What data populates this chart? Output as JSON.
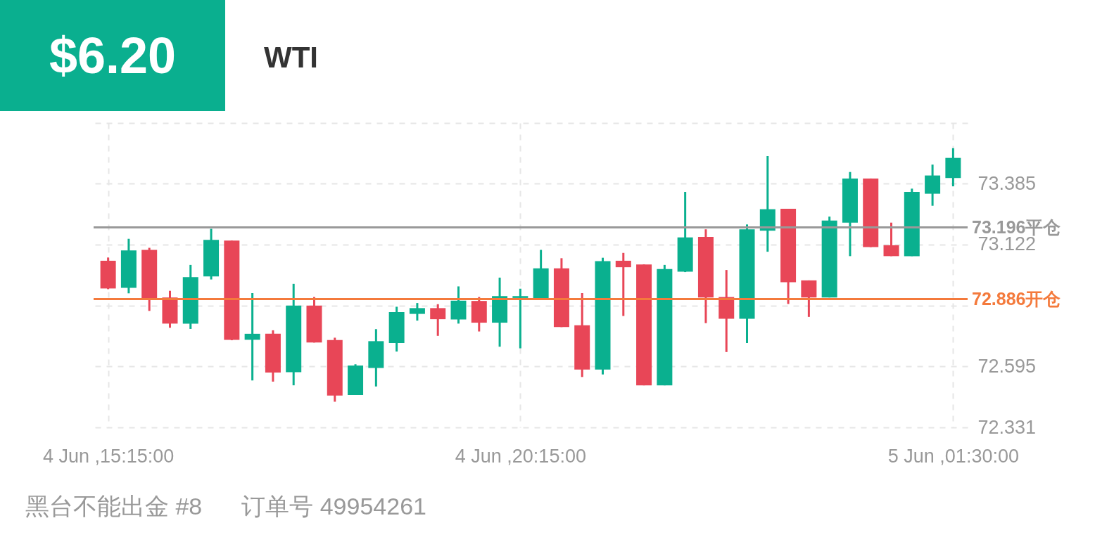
{
  "chart_data": {
    "type": "candlestick",
    "title": "WTI",
    "annotations": [
      "$6.20",
      "黑台不能出金 #8",
      "订单号 49954261"
    ],
    "x": [
      "--06-04T15:15",
      "--06-04T15:30",
      "--06-04T15:45",
      "--06-04T16:00",
      "--06-04T16:15",
      "--06-04T16:30",
      "--06-04T16:45",
      "--06-04T17:00",
      "--06-04T17:15",
      "--06-04T17:30",
      "--06-04T17:45",
      "--06-04T18:00",
      "--06-04T18:15",
      "--06-04T18:30",
      "--06-04T18:45",
      "--06-04T19:00",
      "--06-04T19:15",
      "--06-04T19:30",
      "--06-04T19:45",
      "--06-04T20:00",
      "--06-04T20:15",
      "--06-04T20:30",
      "--06-04T20:45",
      "--06-04T21:00",
      "--06-04T21:15",
      "--06-04T21:30",
      "--06-04T21:45",
      "--06-04T22:00",
      "--06-04T22:15",
      "--06-04T22:30",
      "--06-04T22:45",
      "--06-04T23:00",
      "--06-04T23:15",
      "--06-04T23:30",
      "--06-04T23:45",
      "--06-05T00:00",
      "--06-05T00:15",
      "--06-05T00:30",
      "--06-05T00:45",
      "--06-05T01:00",
      "--06-05T01:15",
      "--06-05T01:30"
    ],
    "ohlc": [
      [
        73.052,
        73.066,
        72.929,
        72.932
      ],
      [
        72.935,
        73.147,
        72.911,
        73.097
      ],
      [
        73.099,
        73.108,
        72.835,
        72.89
      ],
      [
        72.893,
        72.922,
        72.762,
        72.78
      ],
      [
        72.78,
        73.034,
        72.757,
        72.981
      ],
      [
        72.984,
        73.19,
        72.971,
        73.142
      ],
      [
        73.139,
        73.139,
        72.708,
        72.71
      ],
      [
        72.71,
        72.912,
        72.534,
        72.736
      ],
      [
        72.736,
        72.751,
        72.529,
        72.568
      ],
      [
        72.57,
        72.952,
        72.513,
        72.858
      ],
      [
        72.858,
        72.895,
        72.698,
        72.698
      ],
      [
        72.709,
        72.719,
        72.442,
        72.469
      ],
      [
        72.471,
        72.604,
        72.471,
        72.599
      ],
      [
        72.588,
        72.756,
        72.508,
        72.704
      ],
      [
        72.696,
        72.853,
        72.659,
        72.83
      ],
      [
        72.822,
        72.869,
        72.793,
        72.847
      ],
      [
        72.847,
        72.864,
        72.727,
        72.799
      ],
      [
        72.798,
        72.941,
        72.78,
        72.879
      ],
      [
        72.878,
        72.895,
        72.746,
        72.784
      ],
      [
        72.784,
        72.979,
        72.68,
        72.899
      ],
      [
        72.891,
        72.931,
        72.673,
        72.899
      ],
      [
        72.89,
        73.099,
        72.89,
        73.019
      ],
      [
        73.019,
        73.063,
        72.765,
        72.765
      ],
      [
        72.773,
        72.912,
        72.549,
        72.581
      ],
      [
        72.581,
        73.065,
        72.56,
        73.05
      ],
      [
        73.052,
        73.086,
        72.813,
        73.024
      ],
      [
        73.036,
        73.036,
        72.513,
        72.513
      ],
      [
        72.513,
        73.034,
        72.513,
        73.016
      ],
      [
        73.005,
        73.35,
        73.003,
        73.153
      ],
      [
        73.155,
        73.188,
        72.782,
        72.893
      ],
      [
        72.895,
        73.012,
        72.657,
        72.801
      ],
      [
        72.801,
        73.209,
        72.696,
        73.188
      ],
      [
        73.182,
        73.505,
        73.091,
        73.275
      ],
      [
        73.277,
        73.277,
        72.865,
        72.959
      ],
      [
        72.967,
        72.967,
        72.809,
        72.893
      ],
      [
        72.893,
        73.243,
        72.893,
        73.226
      ],
      [
        73.217,
        73.436,
        73.072,
        73.408
      ],
      [
        73.408,
        73.408,
        73.111,
        73.111
      ],
      [
        73.119,
        73.217,
        73.072,
        73.072
      ],
      [
        73.072,
        73.364,
        73.072,
        73.35
      ],
      [
        73.342,
        73.468,
        73.29,
        73.421
      ],
      [
        73.41,
        73.539,
        73.374,
        73.497
      ]
    ],
    "colors": [
      "#e84657",
      "#0ab08f",
      "#e84657",
      "#e84657",
      "#0ab08f",
      "#0ab08f",
      "#e84657",
      "#0ab08f",
      "#e84657",
      "#0ab08f",
      "#e84657",
      "#e84657",
      "#0ab08f",
      "#0ab08f",
      "#0ab08f",
      "#0ab08f",
      "#e84657",
      "#0ab08f",
      "#e84657",
      "#0ab08f",
      "#0ab08f",
      "#0ab08f",
      "#e84657",
      "#e84657",
      "#0ab08f",
      "#e84657",
      "#e84657",
      "#0ab08f",
      "#0ab08f",
      "#e84657",
      "#e84657",
      "#0ab08f",
      "#0ab08f",
      "#e84657",
      "#e84657",
      "#0ab08f",
      "#0ab08f",
      "#e84657",
      "#e84657",
      "#0ab08f",
      "#0ab08f",
      "#0ab08f"
    ],
    "xlim": [
      "--06-04T15:07",
      "--06-05T01:38"
    ],
    "xticks": [
      {
        "value": "--06-04T15:15",
        "label": "4 Jun ,15:15:00"
      },
      {
        "value": "--06-04T20:15",
        "label": "4 Jun ,20:15:00"
      },
      {
        "value": "--06-05T01:30",
        "label": "5 Jun ,01:30:00"
      }
    ],
    "ylim": [
      72.331,
      73.648
    ],
    "yticks": [
      72.331,
      72.595,
      {
        "value": 72.858,
        "label": null
      },
      73.122,
      73.385,
      {
        "value": 73.648,
        "label": null
      }
    ],
    "ref_lines": [
      {
        "axis": "y",
        "value": 73.196,
        "label": "73.196平仓",
        "color": "#999999"
      },
      {
        "axis": "y",
        "value": 72.886,
        "label": "72.886开仓",
        "color": "#f47a3c"
      }
    ],
    "grid": true
  }
}
